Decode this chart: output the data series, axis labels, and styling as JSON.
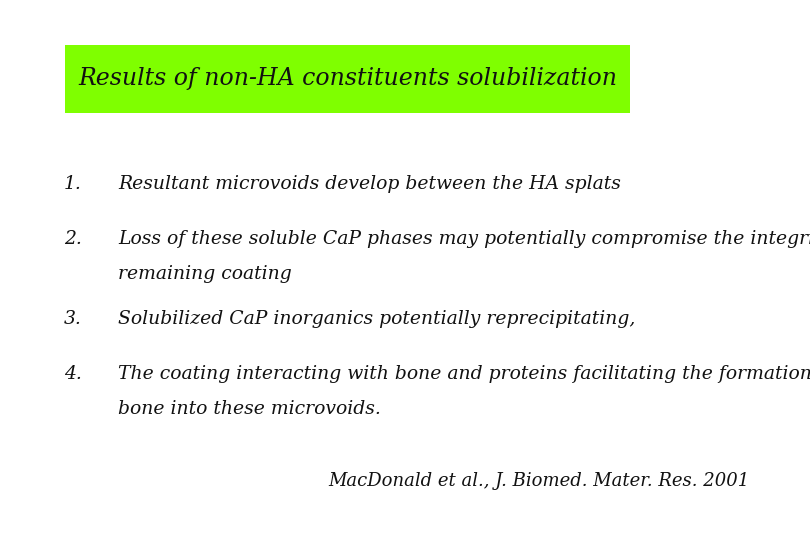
{
  "background_color": "#ffffff",
  "title_text": "Results of non-HA constituents solubilization",
  "title_bg_color": "#7fff00",
  "title_font_size": 17,
  "title_font_color": "#111111",
  "items": [
    {
      "number": "1.",
      "line1": "Resultant microvoids develop between the HA splats",
      "line2": ""
    },
    {
      "number": "2.",
      "line1": "Loss of these soluble CaP phases may potentially compromise the integrity of the",
      "line2": "remaining coating"
    },
    {
      "number": "3.",
      "line1": "Solubilized CaP inorganics potentially reprecipitating,",
      "line2": ""
    },
    {
      "number": "4.",
      "line1": "The coating interacting with bone and proteins facilitating the formation and entry of",
      "line2": "bone into these microvoids."
    }
  ],
  "item_font_size": 13.5,
  "item_font_color": "#111111",
  "citation": "MacDonald et al., J. Biomed. Mater. Res. 2001",
  "citation_font_size": 13,
  "citation_font_color": "#111111"
}
